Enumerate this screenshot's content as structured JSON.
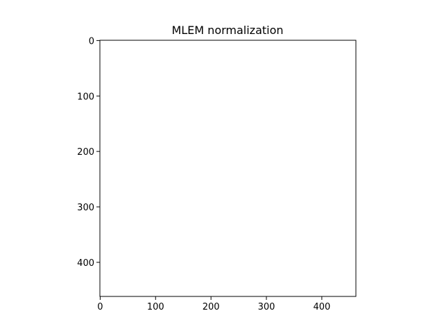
{
  "chart_data": {
    "type": "heatmap",
    "title": "MLEM normalization",
    "xlabel": "",
    "ylabel": "",
    "xlim": [
      -0.5,
      461.5
    ],
    "ylim": [
      461.5,
      -0.5
    ],
    "y_inverted": true,
    "x_ticks": [
      0,
      100,
      200,
      300,
      400
    ],
    "y_ticks": [
      0,
      100,
      200,
      300,
      400
    ],
    "x_tick_labels": [
      "0",
      "100",
      "200",
      "300",
      "400"
    ],
    "y_tick_labels": [
      "0",
      "100",
      "200",
      "300",
      "400"
    ],
    "image_fill": "#ffffff",
    "grid": false,
    "legend": "none"
  },
  "colors": {
    "background": "#ffffff",
    "axes_edge": "#000000",
    "text": "#000000"
  }
}
